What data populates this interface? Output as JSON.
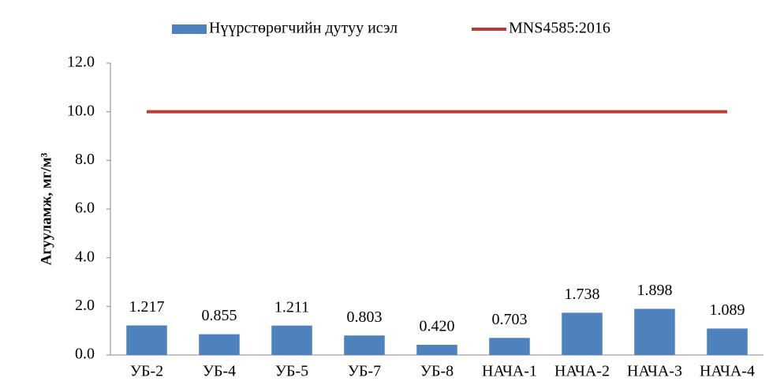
{
  "chart_data": {
    "type": "bar",
    "y_label": "Агууламж, мг/м³",
    "categories": [
      "УБ-2",
      "УБ-4",
      "УБ-5",
      "УБ-7",
      "УБ-8",
      "НАЧА-1",
      "НАЧА-2",
      "НАЧА-3",
      "НАЧА-4"
    ],
    "series": [
      {
        "name": "Нүүрстөрөгчийн дутуу исэл",
        "type": "bar",
        "color": "#4f81bd",
        "values": [
          1.217,
          0.855,
          1.211,
          0.803,
          0.42,
          0.703,
          1.738,
          1.898,
          1.089
        ],
        "value_labels": [
          "1.217",
          "0.855",
          "1.211",
          "0.803",
          "0.420",
          "0.703",
          "1.738",
          "1.898",
          "1.089"
        ]
      },
      {
        "name": "MNS4585:2016",
        "type": "line",
        "color": "#be3a34",
        "values": [
          10,
          10,
          10,
          10,
          10,
          10,
          10,
          10,
          10
        ]
      }
    ],
    "ylim": [
      0,
      12
    ],
    "yticks": [
      {
        "value": 0,
        "label": "0.0"
      },
      {
        "value": 2,
        "label": "2.0"
      },
      {
        "value": 4,
        "label": "4.0"
      },
      {
        "value": 6,
        "label": "6.0"
      },
      {
        "value": 8,
        "label": "8.0"
      },
      {
        "value": 10,
        "label": "10.0"
      },
      {
        "value": 12,
        "label": "12.0"
      }
    ],
    "legend": "top"
  }
}
